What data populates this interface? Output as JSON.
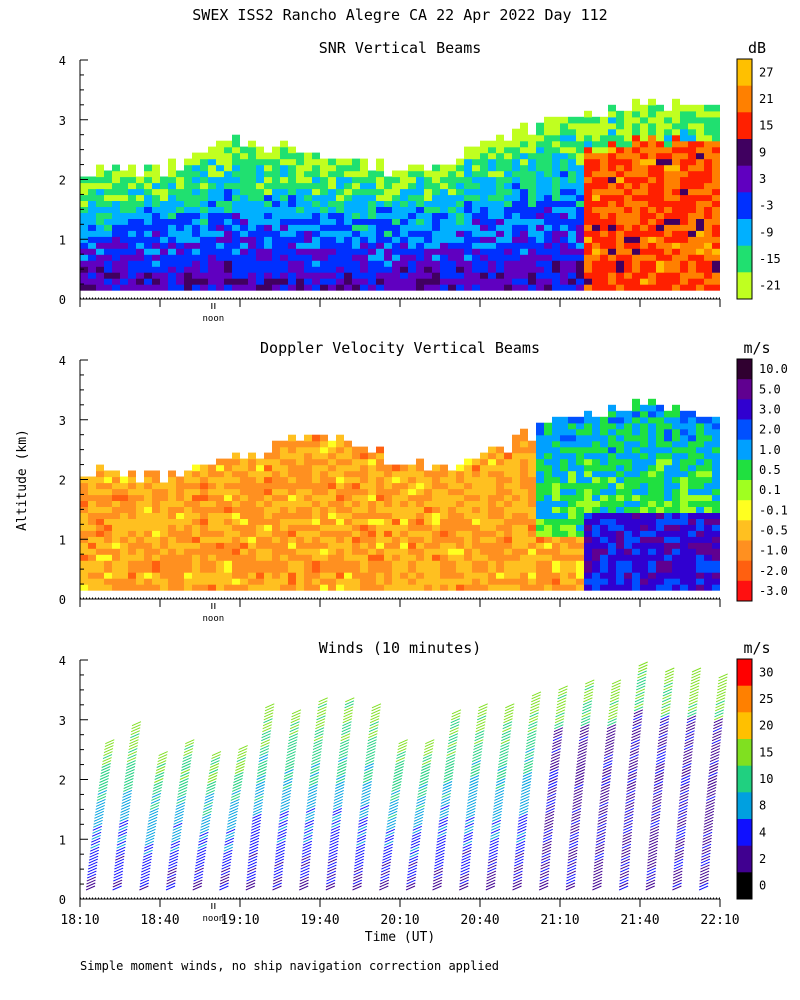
{
  "title": "SWEX ISS2 Rancho Alegre CA  22 Apr 2022 Day 112",
  "footer_note": "Simple moment winds, no ship navigation correction applied",
  "ylabel": "Altitude (km)",
  "xlabel": "Time (UT)",
  "noon_label": "noon",
  "time_ticks": [
    "18:10",
    "18:40",
    "19:10",
    "19:40",
    "20:10",
    "20:40",
    "21:10",
    "21:40",
    "22:10"
  ],
  "chart_data": [
    {
      "type": "heatmap",
      "title": "SNR Vertical Beams",
      "units": "dB",
      "ylim": [
        0,
        4
      ],
      "yticks": [
        0,
        1,
        2,
        3,
        4
      ],
      "xlim": [
        "18:10",
        "22:10"
      ],
      "colorbar": {
        "labels": [
          "27",
          "21",
          "15",
          "9",
          "3",
          "-3",
          "-9",
          "-15",
          "-21"
        ],
        "colors": [
          "#ffc000",
          "#ff8000",
          "#ff2000",
          "#400060",
          "#6000c0",
          "#0030ff",
          "#00b0ff",
          "#20e070",
          "#c0ff20"
        ]
      },
      "echo_top_km": [
        {
          "time": "18:10",
          "km": 2.1
        },
        {
          "time": "18:40",
          "km": 2.1
        },
        {
          "time": "19:10",
          "km": 2.6
        },
        {
          "time": "19:40",
          "km": 2.4
        },
        {
          "time": "20:10",
          "km": 2.1
        },
        {
          "time": "20:40",
          "km": 2.5
        },
        {
          "time": "21:10",
          "km": 3.0
        },
        {
          "time": "21:40",
          "km": 3.2
        },
        {
          "time": "22:10",
          "km": 3.3
        }
      ]
    },
    {
      "type": "heatmap",
      "title": "Doppler Velocity Vertical Beams",
      "units": "m/s",
      "ylim": [
        0,
        4
      ],
      "yticks": [
        0,
        1,
        2,
        3,
        4
      ],
      "xlim": [
        "18:10",
        "22:10"
      ],
      "colorbar": {
        "labels": [
          "10.0",
          "5.0",
          "3.0",
          "2.0",
          "1.0",
          "0.5",
          "0.1",
          "-0.1",
          "-0.5",
          "-1.0",
          "-2.0",
          "-3.0"
        ],
        "colors": [
          "#300030",
          "#600090",
          "#3000d0",
          "#0050ff",
          "#00a0ff",
          "#20e040",
          "#a0ff20",
          "#ffff20",
          "#ffc020",
          "#ff9020",
          "#ff6010",
          "#ff1010"
        ]
      },
      "echo_top_km": [
        {
          "time": "18:10",
          "km": 2.1
        },
        {
          "time": "18:40",
          "km": 2.0
        },
        {
          "time": "19:10",
          "km": 2.3
        },
        {
          "time": "19:40",
          "km": 2.8
        },
        {
          "time": "20:10",
          "km": 2.2
        },
        {
          "time": "20:40",
          "km": 2.3
        },
        {
          "time": "21:10",
          "km": 3.0
        },
        {
          "time": "21:40",
          "km": 3.2
        },
        {
          "time": "22:10",
          "km": 3.1
        }
      ]
    },
    {
      "type": "wind_barbs",
      "title": "Winds (10 minutes)",
      "units": "m/s",
      "ylim": [
        0,
        4
      ],
      "yticks": [
        0,
        1,
        2,
        3,
        4
      ],
      "xlim": [
        "18:10",
        "22:10"
      ],
      "colorbar": {
        "labels": [
          "30",
          "25",
          "20",
          "15",
          "10",
          "8",
          "4",
          "2",
          "0"
        ],
        "colors": [
          "#ff0000",
          "#ff8000",
          "#ffc000",
          "#80e020",
          "#20d080",
          "#00a0e0",
          "#1010ff",
          "#400090",
          "#000000"
        ]
      },
      "profiles": [
        {
          "time": "18:15",
          "top_km": 2.6
        },
        {
          "time": "18:25",
          "top_km": 2.9
        },
        {
          "time": "18:35",
          "top_km": 2.4
        },
        {
          "time": "18:45",
          "top_km": 2.6
        },
        {
          "time": "18:55",
          "top_km": 2.4
        },
        {
          "time": "19:05",
          "top_km": 2.5
        },
        {
          "time": "19:15",
          "top_km": 3.2
        },
        {
          "time": "19:25",
          "top_km": 3.1
        },
        {
          "time": "19:35",
          "top_km": 3.3
        },
        {
          "time": "19:45",
          "top_km": 3.3
        },
        {
          "time": "19:55",
          "top_km": 3.2
        },
        {
          "time": "20:05",
          "top_km": 2.6
        },
        {
          "time": "20:15",
          "top_km": 2.6
        },
        {
          "time": "20:25",
          "top_km": 3.1
        },
        {
          "time": "20:35",
          "top_km": 3.2
        },
        {
          "time": "20:45",
          "top_km": 3.2
        },
        {
          "time": "20:55",
          "top_km": 3.4
        },
        {
          "time": "21:05",
          "top_km": 3.5
        },
        {
          "time": "21:15",
          "top_km": 3.6
        },
        {
          "time": "21:25",
          "top_km": 3.6
        },
        {
          "time": "21:35",
          "top_km": 3.9
        },
        {
          "time": "21:45",
          "top_km": 3.8
        },
        {
          "time": "21:55",
          "top_km": 3.8
        },
        {
          "time": "22:05",
          "top_km": 3.7
        }
      ]
    }
  ]
}
